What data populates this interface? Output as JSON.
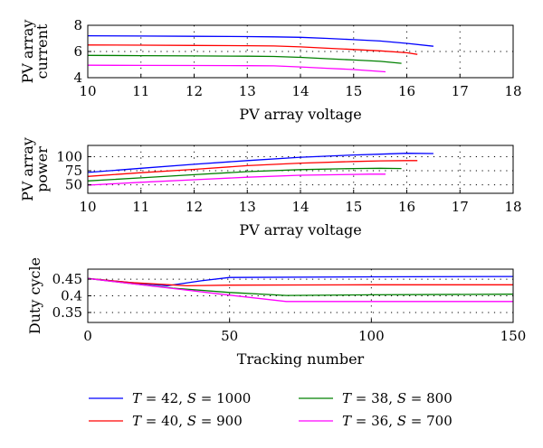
{
  "chart_data": [
    {
      "type": "line",
      "xlabel": "PV array voltage",
      "ylabel": [
        "PV array",
        "current"
      ],
      "xlim": [
        10,
        18
      ],
      "ylim": [
        4,
        8
      ],
      "xticks": [
        10,
        11,
        12,
        13,
        14,
        15,
        16,
        17,
        18
      ],
      "yticks": [
        4,
        6,
        8
      ],
      "grid": true,
      "series": [
        {
          "name_key": 0,
          "x": [
            10,
            11,
            12,
            13,
            13.5,
            14,
            14.5,
            15,
            15.5,
            16,
            16.5
          ],
          "y": [
            7.2,
            7.18,
            7.16,
            7.14,
            7.12,
            7.08,
            7.0,
            6.9,
            6.8,
            6.62,
            6.4
          ]
        },
        {
          "name_key": 1,
          "x": [
            10,
            11,
            12,
            13,
            13.5,
            14,
            14.5,
            15,
            15.5,
            16,
            16.2
          ],
          "y": [
            6.5,
            6.48,
            6.46,
            6.44,
            6.42,
            6.35,
            6.25,
            6.15,
            6.05,
            5.9,
            5.78
          ]
        },
        {
          "name_key": 2,
          "x": [
            10,
            11,
            12,
            13,
            13.5,
            14,
            14.5,
            15,
            15.5,
            15.9
          ],
          "y": [
            5.7,
            5.68,
            5.66,
            5.64,
            5.62,
            5.55,
            5.45,
            5.35,
            5.25,
            5.1
          ]
        },
        {
          "name_key": 3,
          "x": [
            10,
            11,
            12,
            13,
            13.5,
            14,
            14.5,
            15,
            15.6
          ],
          "y": [
            4.95,
            4.94,
            4.93,
            4.92,
            4.9,
            4.82,
            4.72,
            4.62,
            4.45
          ]
        }
      ]
    },
    {
      "type": "line",
      "xlabel": "PV array voltage",
      "ylabel": [
        "PV array",
        "power"
      ],
      "xlim": [
        10,
        18
      ],
      "ylim": [
        35,
        120
      ],
      "xticks": [
        10,
        11,
        12,
        13,
        14,
        15,
        16,
        17,
        18
      ],
      "yticks": [
        50,
        75,
        100
      ],
      "grid": true,
      "series": [
        {
          "name_key": 0,
          "x": [
            10,
            11,
            12,
            13,
            14,
            15,
            15.5,
            16,
            16.5
          ],
          "y": [
            72,
            79.5,
            86.5,
            93,
            99,
            103,
            104.5,
            106,
            105.6
          ]
        },
        {
          "name_key": 1,
          "x": [
            10,
            11,
            12,
            13,
            14,
            15,
            15.5,
            16,
            16.2
          ],
          "y": [
            65,
            71.5,
            77.5,
            84,
            88.5,
            91.5,
            92.5,
            93,
            93
          ]
        },
        {
          "name_key": 2,
          "x": [
            10,
            11,
            12,
            13,
            14,
            15,
            15.5,
            15.9
          ],
          "y": [
            57,
            62.5,
            68,
            73.5,
            77,
            79,
            79.5,
            79
          ]
        },
        {
          "name_key": 3,
          "x": [
            10,
            11,
            12,
            13,
            14,
            15,
            15.3,
            15.6
          ],
          "y": [
            49.5,
            54.5,
            59,
            63.5,
            67,
            68.5,
            69,
            69
          ]
        }
      ]
    },
    {
      "type": "line",
      "xlabel": "Tracking number",
      "ylabel": [
        "Duty cycle"
      ],
      "xlim": [
        0,
        150
      ],
      "ylim": [
        0.32,
        0.48
      ],
      "xticks": [
        0,
        50,
        100,
        150
      ],
      "yticks": [
        0.35,
        0.4,
        0.45
      ],
      "grid": true,
      "series": [
        {
          "name_key": 0,
          "x": [
            0,
            15,
            28,
            40,
            50,
            100,
            150
          ],
          "y": [
            0.452,
            0.44,
            0.43,
            0.445,
            0.455,
            0.457,
            0.458
          ]
        },
        {
          "name_key": 1,
          "x": [
            0,
            15,
            35,
            50,
            100,
            150
          ],
          "y": [
            0.452,
            0.44,
            0.43,
            0.432,
            0.433,
            0.433
          ]
        },
        {
          "name_key": 2,
          "x": [
            0,
            15,
            30,
            50,
            70,
            100,
            150
          ],
          "y": [
            0.452,
            0.437,
            0.423,
            0.41,
            0.401,
            0.403,
            0.405
          ]
        },
        {
          "name_key": 3,
          "x": [
            0,
            15,
            30,
            50,
            70,
            100,
            150
          ],
          "y": [
            0.452,
            0.437,
            0.422,
            0.402,
            0.383,
            0.383,
            0.383
          ]
        }
      ]
    }
  ],
  "legend": [
    {
      "t": "42",
      "s": "1000",
      "color": "#0000ff"
    },
    {
      "t": "40",
      "s": "900",
      "color": "#ff0000"
    },
    {
      "t": "38",
      "s": "800",
      "color": "#008000"
    },
    {
      "t": "36",
      "s": "700",
      "color": "#ff00ff"
    }
  ],
  "legend_tokens": {
    "t": "T",
    "s": "S",
    "eq": " = ",
    "sep": ", "
  }
}
